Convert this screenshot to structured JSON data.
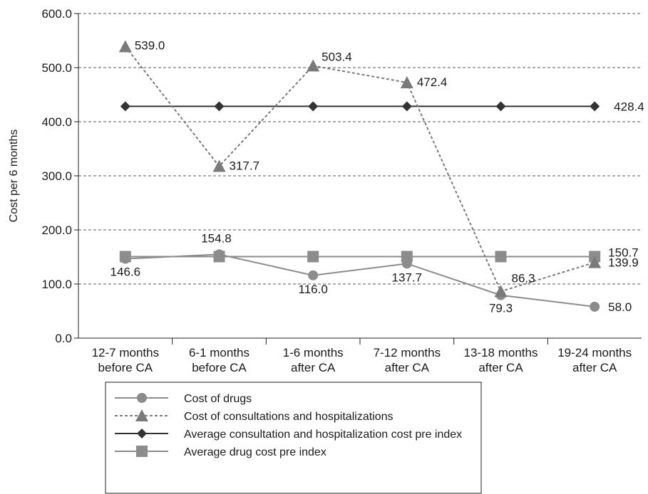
{
  "chart_data": {
    "type": "line",
    "ylabel": "Cost per 6 months",
    "xlabel": "",
    "ylim": [
      0,
      600
    ],
    "yticks": [
      "0.0",
      "100.0",
      "200.0",
      "300.0",
      "400.0",
      "500.0",
      "600.0"
    ],
    "grid": "horizontal-dashed",
    "legend_position": "bottom",
    "categories": [
      [
        "12-7 months",
        "before CA"
      ],
      [
        "6-1 months",
        "before CA"
      ],
      [
        "1-6 months",
        "after CA"
      ],
      [
        "7-12 months",
        "after CA"
      ],
      [
        "13-18 months",
        "after CA"
      ],
      [
        "19-24 months",
        "after CA"
      ]
    ],
    "series": [
      {
        "name": "Cost of drugs",
        "values": [
          146.6,
          154.8,
          116.0,
          137.7,
          79.3,
          58.0
        ],
        "labels": [
          "146.6",
          "154.8",
          "116.0",
          "137.7",
          "79.3",
          "58.0"
        ],
        "marker": "circle",
        "dash": "solid",
        "color": "#8c8c8c"
      },
      {
        "name": "Cost of consultations and hospitalizations",
        "values": [
          539.0,
          317.7,
          503.4,
          472.4,
          86.3,
          139.9
        ],
        "labels": [
          "539.0",
          "317.7",
          "503.4",
          "472.4",
          "86.3",
          "139.9"
        ],
        "marker": "triangle",
        "dash": "dashed",
        "color": "#7a7a7a"
      },
      {
        "name": "Average consultation and hospitalization cost pre index",
        "values": [
          428.4,
          428.4,
          428.4,
          428.4,
          428.4,
          428.4
        ],
        "labels": [
          "",
          "",
          "",
          "",
          "",
          "428.4"
        ],
        "marker": "diamond",
        "dash": "solid",
        "color": "#333333"
      },
      {
        "name": "Average drug cost pre index",
        "values": [
          150.7,
          150.7,
          150.7,
          150.7,
          150.7,
          150.7
        ],
        "labels": [
          "",
          "",
          "",
          "",
          "",
          "150.7"
        ],
        "marker": "square",
        "dash": "solid",
        "color": "#8c8c8c"
      }
    ]
  }
}
